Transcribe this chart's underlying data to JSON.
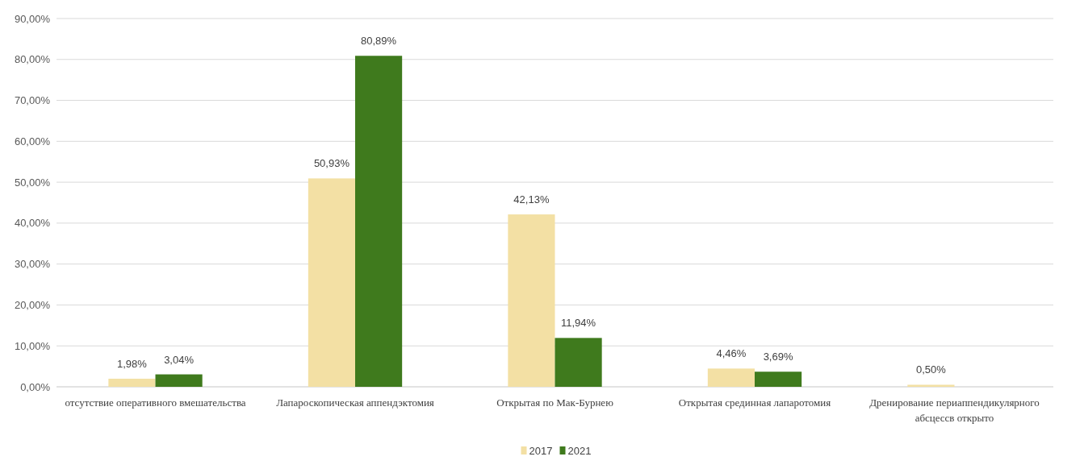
{
  "chart_data": {
    "type": "bar",
    "categories": [
      "отсутствие оперативного вмешательства",
      "Лапароскопическая аппендэктомия",
      "Открытая по Мак-Бурнею",
      "Открытая срединная лапаротомия",
      "Дренирование периаппендикулярного абсцессв открыто"
    ],
    "series": [
      {
        "name": "2017",
        "color": "#f3e0a4",
        "values": [
          1.98,
          50.93,
          42.13,
          4.46,
          0.5
        ],
        "value_labels": [
          "1,98%",
          "50,93%",
          "42,13%",
          "4,46%",
          "0,50%"
        ]
      },
      {
        "name": "2021",
        "color": "#3f7a1d",
        "values": [
          3.04,
          80.89,
          11.94,
          3.69,
          null
        ],
        "value_labels": [
          "3,04%",
          "80,89%",
          "11,94%",
          "3,69%",
          null
        ]
      }
    ],
    "ylim": [
      0,
      90
    ],
    "yticks": [
      {
        "value": 0,
        "label": "0,00%"
      },
      {
        "value": 10,
        "label": "10,00%"
      },
      {
        "value": 20,
        "label": "20,00%"
      },
      {
        "value": 30,
        "label": "30,00%"
      },
      {
        "value": 40,
        "label": "40,00%"
      },
      {
        "value": 50,
        "label": "50,00%"
      },
      {
        "value": 60,
        "label": "60,00%"
      },
      {
        "value": 70,
        "label": "70,00%"
      },
      {
        "value": 80,
        "label": "80,00%"
      },
      {
        "value": 90,
        "label": "90,00%"
      }
    ],
    "grid": "y",
    "legend": "bottom"
  }
}
